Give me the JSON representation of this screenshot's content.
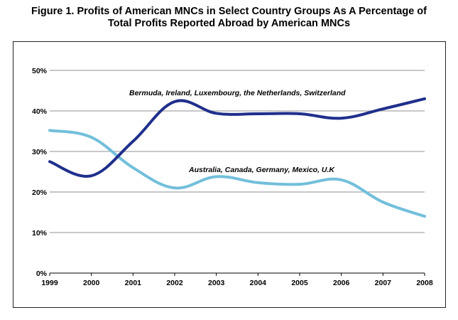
{
  "figure": {
    "title_line1": "Figure 1.  Profits of American MNCs in Select Country Groups As A Percentage of",
    "title_line2": "Total Profits Reported Abroad by American MNCs"
  },
  "chart_data": {
    "type": "line",
    "title": "Figure 1.  Profits of American MNCs in Select Country Groups As A Percentage of Total Profits Reported Abroad by American MNCs",
    "xlabel": "",
    "ylabel": "",
    "x": [
      1999,
      2000,
      2001,
      2002,
      2003,
      2004,
      2005,
      2006,
      2007,
      2008
    ],
    "x_tick_labels": [
      "1999",
      "2000",
      "2001",
      "2002",
      "2003",
      "2004",
      "2005",
      "2006",
      "2007",
      "2008"
    ],
    "y_ticks": [
      0,
      10,
      20,
      30,
      40,
      50
    ],
    "y_tick_labels": [
      "0%",
      "10%",
      "20%",
      "30%",
      "40%",
      "50%"
    ],
    "ylim": [
      0,
      50
    ],
    "grid": true,
    "series": [
      {
        "name": "Bermuda, Ireland, Luxembourg, the Netherlands, Switzerland",
        "color": "#1f2f8c",
        "values": [
          27.5,
          24,
          32.5,
          42.3,
          39.4,
          39.3,
          39.3,
          38.2,
          40.5,
          43
        ]
      },
      {
        "name": "Australia, Canada, Germany, Mexico, U.K",
        "color": "#72bfdb",
        "values": [
          35.2,
          33.5,
          26,
          21,
          23.8,
          22.3,
          21.9,
          23,
          17.5,
          14
        ]
      }
    ]
  }
}
